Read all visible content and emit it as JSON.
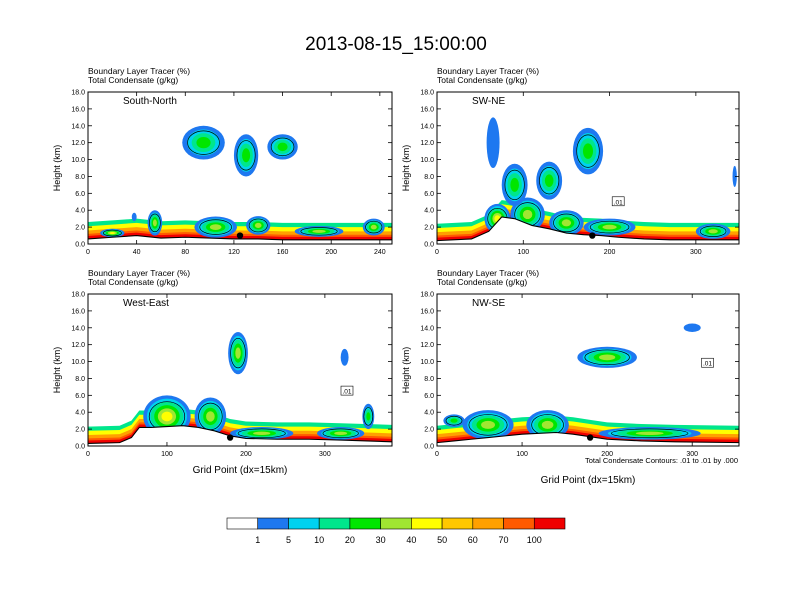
{
  "title": "2013-08-15_15:00:00",
  "colorbar": {
    "colors": [
      "#ffffff",
      "#1e78f0",
      "#00d2f0",
      "#00e68c",
      "#00e600",
      "#a0e632",
      "#ffff00",
      "#ffc800",
      "#ffa000",
      "#ff5a00",
      "#f00000"
    ],
    "labels": [
      "1",
      "5",
      "10",
      "20",
      "30",
      "40",
      "50",
      "60",
      "70",
      "100"
    ]
  },
  "footnote": "Total Condensate Contours: .01 to .01 by .000",
  "chart_data": [
    {
      "type": "heatmap",
      "line1": "Boundary Layer Tracer   (%)",
      "line2": "Total Condensate   (g/kg)",
      "inset_label": "South-North",
      "ylabel": "Height (km)",
      "xlabel": "",
      "xlim": [
        0,
        250
      ],
      "ylim": [
        0,
        18
      ],
      "xticks": [
        "0",
        "40",
        "80",
        "120",
        "160",
        "200",
        "240"
      ],
      "yticks": [
        "0.0",
        "2.0",
        "4.0",
        "6.0",
        "8.0",
        "10.0",
        "12.0",
        "14.0",
        "16.0",
        "18.0"
      ],
      "contour_boxes": [],
      "terrain": [
        [
          0,
          0.6
        ],
        [
          20,
          0.8
        ],
        [
          40,
          1.0
        ],
        [
          60,
          0.7
        ],
        [
          80,
          0.8
        ],
        [
          100,
          0.7
        ],
        [
          120,
          0.6
        ],
        [
          140,
          0.6
        ],
        [
          160,
          0.5
        ],
        [
          180,
          0.5
        ],
        [
          200,
          0.5
        ],
        [
          220,
          0.5
        ],
        [
          250,
          0.5
        ]
      ],
      "blobs": [
        {
          "x": 20,
          "y": 1.3,
          "w": 20,
          "h": 1.0,
          "level": 6
        },
        {
          "x": 55,
          "y": 2.5,
          "w": 12,
          "h": 3.0,
          "level": 5
        },
        {
          "x": 105,
          "y": 2.0,
          "w": 35,
          "h": 2.5,
          "level": 5
        },
        {
          "x": 140,
          "y": 2.2,
          "w": 20,
          "h": 2.2,
          "level": 5
        },
        {
          "x": 190,
          "y": 1.5,
          "w": 40,
          "h": 1.3,
          "level": 5
        },
        {
          "x": 235,
          "y": 2.0,
          "w": 18,
          "h": 2.0,
          "level": 5
        },
        {
          "x": 95,
          "y": 12.0,
          "w": 35,
          "h": 4.0,
          "level": 4
        },
        {
          "x": 130,
          "y": 10.5,
          "w": 20,
          "h": 5.0,
          "level": 4
        },
        {
          "x": 160,
          "y": 11.5,
          "w": 25,
          "h": 3.0,
          "level": 4
        },
        {
          "x": 38,
          "y": 3.2,
          "w": 4,
          "h": 1.0,
          "level": 1
        }
      ],
      "dot": [
        125,
        1.0
      ]
    },
    {
      "type": "heatmap",
      "line1": "Boundary Layer Tracer   (%)",
      "line2": "Total Condensate   (g/kg)",
      "inset_label": "SW-NE",
      "ylabel": "Height (km)",
      "xlabel": "",
      "xlim": [
        0,
        350
      ],
      "ylim": [
        0,
        18
      ],
      "xticks": [
        "0",
        "100",
        "200",
        "300"
      ],
      "yticks": [
        "0.0",
        "2.0",
        "4.0",
        "6.0",
        "8.0",
        "10.0",
        "12.0",
        "14.0",
        "16.0",
        "18.0"
      ],
      "contour_boxes": [
        {
          "x": 210,
          "y": 5.0,
          "text": ".01"
        }
      ],
      "terrain": [
        [
          0,
          0.4
        ],
        [
          40,
          0.6
        ],
        [
          60,
          1.5
        ],
        [
          75,
          3.2
        ],
        [
          90,
          3.0
        ],
        [
          110,
          2.2
        ],
        [
          130,
          1.8
        ],
        [
          150,
          1.3
        ],
        [
          170,
          1.1
        ],
        [
          190,
          1.0
        ],
        [
          210,
          0.8
        ],
        [
          240,
          0.6
        ],
        [
          270,
          0.5
        ],
        [
          300,
          0.5
        ],
        [
          350,
          0.5
        ]
      ],
      "blobs": [
        {
          "x": 70,
          "y": 3.0,
          "w": 30,
          "h": 3.5,
          "level": 6
        },
        {
          "x": 105,
          "y": 3.5,
          "w": 40,
          "h": 4.0,
          "level": 5
        },
        {
          "x": 150,
          "y": 2.5,
          "w": 40,
          "h": 3.0,
          "level": 5
        },
        {
          "x": 200,
          "y": 2.0,
          "w": 60,
          "h": 2.0,
          "level": 5
        },
        {
          "x": 320,
          "y": 1.5,
          "w": 40,
          "h": 1.8,
          "level": 5
        },
        {
          "x": 90,
          "y": 7.0,
          "w": 30,
          "h": 5.0,
          "level": 4
        },
        {
          "x": 130,
          "y": 7.5,
          "w": 30,
          "h": 4.5,
          "level": 4
        },
        {
          "x": 175,
          "y": 11.0,
          "w": 35,
          "h": 5.5,
          "level": 4
        },
        {
          "x": 65,
          "y": 12.0,
          "w": 15,
          "h": 6.0,
          "level": 1
        },
        {
          "x": 345,
          "y": 8.0,
          "w": 5,
          "h": 2.5,
          "level": 1
        }
      ],
      "dot": [
        180,
        1.0
      ]
    },
    {
      "type": "heatmap",
      "line1": "Boundary Layer Tracer   (%)",
      "line2": "Total Condensate   (g/kg)",
      "inset_label": "West-East",
      "ylabel": "Height (km)",
      "xlabel": "Grid Point (dx=15km)",
      "xlim": [
        0,
        385
      ],
      "ylim": [
        0,
        18
      ],
      "xticks": [
        "0",
        "100",
        "200",
        "300"
      ],
      "yticks": [
        "0.0",
        "2.0",
        "4.0",
        "6.0",
        "8.0",
        "10.0",
        "12.0",
        "14.0",
        "16.0",
        "18.0"
      ],
      "contour_boxes": [
        {
          "x": 328,
          "y": 6.5,
          "text": ".01"
        }
      ],
      "terrain": [
        [
          0,
          0.3
        ],
        [
          40,
          0.4
        ],
        [
          55,
          1.0
        ],
        [
          65,
          2.2
        ],
        [
          80,
          2.2
        ],
        [
          100,
          2.3
        ],
        [
          120,
          2.4
        ],
        [
          140,
          2.2
        ],
        [
          160,
          1.8
        ],
        [
          180,
          1.2
        ],
        [
          200,
          0.9
        ],
        [
          240,
          0.8
        ],
        [
          280,
          0.8
        ],
        [
          320,
          0.7
        ],
        [
          385,
          0.5
        ]
      ],
      "blobs": [
        {
          "x": 100,
          "y": 3.5,
          "w": 60,
          "h": 5.0,
          "level": 6
        },
        {
          "x": 155,
          "y": 3.5,
          "w": 40,
          "h": 4.5,
          "level": 5
        },
        {
          "x": 220,
          "y": 1.5,
          "w": 80,
          "h": 1.5,
          "level": 5
        },
        {
          "x": 320,
          "y": 1.5,
          "w": 60,
          "h": 1.5,
          "level": 5
        },
        {
          "x": 190,
          "y": 11.0,
          "w": 25,
          "h": 5.0,
          "level": 5
        },
        {
          "x": 355,
          "y": 3.5,
          "w": 15,
          "h": 3.0,
          "level": 4
        },
        {
          "x": 325,
          "y": 10.5,
          "w": 10,
          "h": 2.0,
          "level": 1
        }
      ],
      "dot": [
        180,
        1.0
      ]
    },
    {
      "type": "heatmap",
      "line1": "Boundary Layer Tracer   (%)",
      "line2": "Total Condensate   (g/kg)",
      "inset_label": "NW-SE",
      "ylabel": "Height (km)",
      "xlabel": "Grid Point (dx=15km)",
      "xlim": [
        0,
        355
      ],
      "ylim": [
        0,
        18
      ],
      "xticks": [
        "0",
        "100",
        "200",
        "300"
      ],
      "yticks": [
        "0.0",
        "2.0",
        "4.0",
        "6.0",
        "8.0",
        "10.0",
        "12.0",
        "14.0",
        "16.0",
        "18.0"
      ],
      "contour_boxes": [
        {
          "x": 318,
          "y": 9.8,
          "text": ".01"
        }
      ],
      "terrain": [
        [
          0,
          0.4
        ],
        [
          20,
          0.6
        ],
        [
          40,
          0.8
        ],
        [
          60,
          1.0
        ],
        [
          80,
          1.2
        ],
        [
          100,
          1.4
        ],
        [
          120,
          1.5
        ],
        [
          140,
          1.6
        ],
        [
          160,
          1.4
        ],
        [
          180,
          1.1
        ],
        [
          200,
          0.8
        ],
        [
          240,
          0.6
        ],
        [
          280,
          0.5
        ],
        [
          355,
          0.4
        ]
      ],
      "blobs": [
        {
          "x": 60,
          "y": 2.5,
          "w": 60,
          "h": 3.5,
          "level": 5
        },
        {
          "x": 130,
          "y": 2.5,
          "w": 50,
          "h": 3.5,
          "level": 5
        },
        {
          "x": 250,
          "y": 1.5,
          "w": 120,
          "h": 1.5,
          "level": 5
        },
        {
          "x": 20,
          "y": 3.0,
          "w": 25,
          "h": 1.5,
          "level": 4
        },
        {
          "x": 200,
          "y": 10.5,
          "w": 70,
          "h": 2.5,
          "level": 5
        },
        {
          "x": 300,
          "y": 14.0,
          "w": 20,
          "h": 1.0,
          "level": 1
        }
      ],
      "dot": [
        180,
        1.0
      ]
    }
  ]
}
